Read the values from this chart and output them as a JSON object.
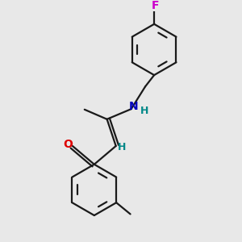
{
  "bg": "#e8e8e8",
  "bc": "#1a1a1a",
  "O_color": "#dd0000",
  "N_color": "#0000bb",
  "F_color": "#cc00cc",
  "H_color": "#008888",
  "lw": 1.6,
  "figsize": [
    3.0,
    3.0
  ],
  "dpi": 100,
  "xlim": [
    -1.0,
    5.5
  ],
  "ylim": [
    -0.5,
    8.5
  ]
}
